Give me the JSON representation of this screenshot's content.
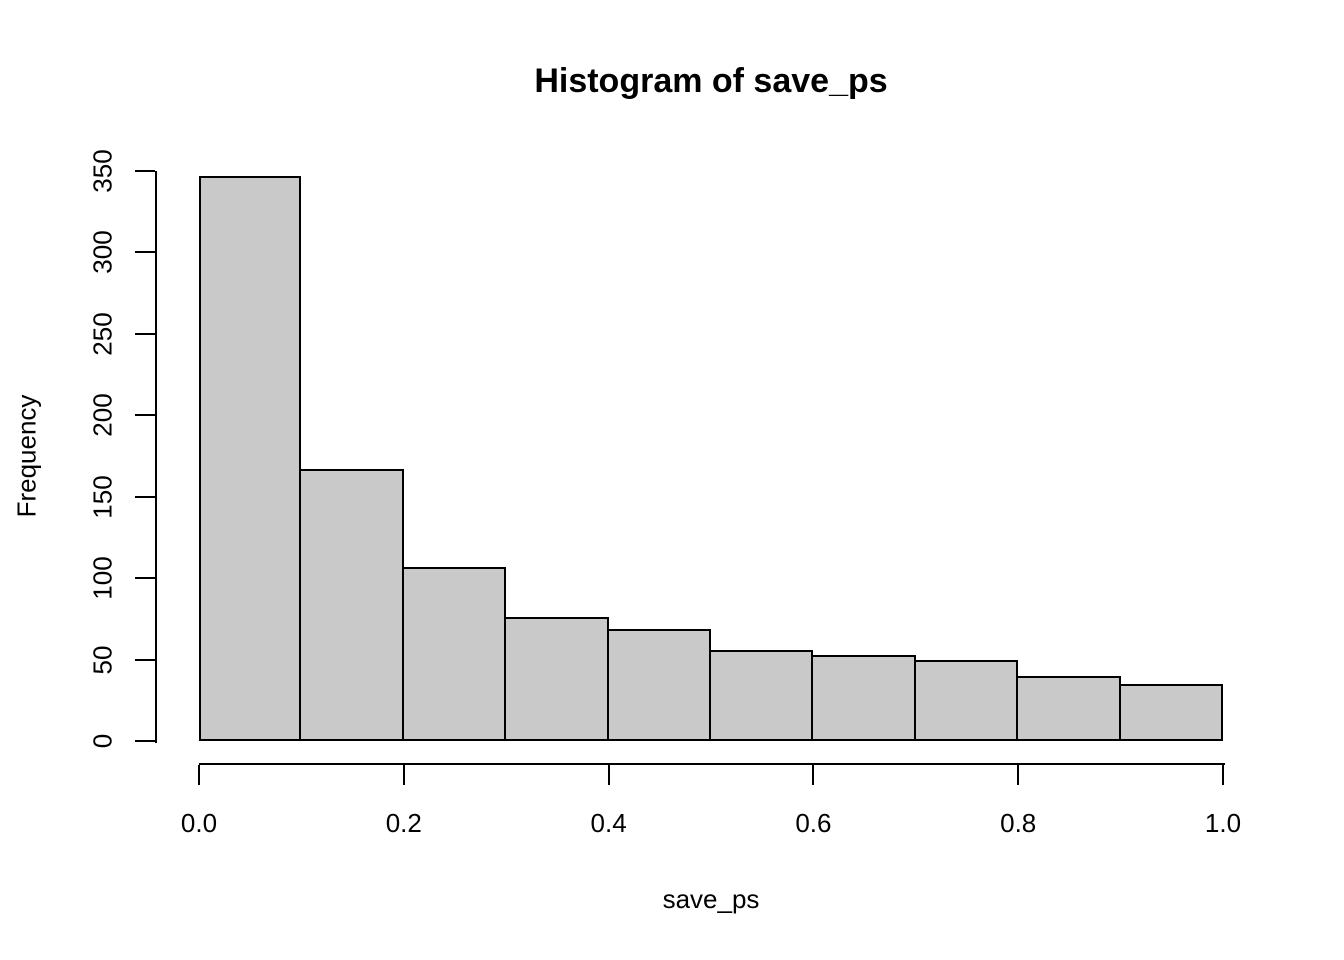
{
  "chart_data": {
    "type": "bar",
    "subtype": "histogram",
    "title": "Histogram of save_ps",
    "xlabel": "save_ps",
    "ylabel": "Frequency",
    "bin_edges": [
      0.0,
      0.1,
      0.2,
      0.3,
      0.4,
      0.5,
      0.6,
      0.7,
      0.8,
      0.9,
      1.0
    ],
    "counts": [
      347,
      167,
      107,
      76,
      69,
      56,
      53,
      50,
      40,
      35
    ],
    "total_count": 1000,
    "x_tick_values": [
      0.0,
      0.2,
      0.4,
      0.6,
      0.8,
      1.0
    ],
    "x_tick_labels": [
      "0.0",
      "0.2",
      "0.4",
      "0.6",
      "0.8",
      "1.0"
    ],
    "y_tick_values": [
      0,
      50,
      100,
      150,
      200,
      250,
      300,
      350
    ],
    "y_tick_labels": [
      "0",
      "50",
      "100",
      "150",
      "200",
      "250",
      "300",
      "350"
    ],
    "xlim": [
      0.0,
      1.0
    ],
    "ylim": [
      0,
      350
    ],
    "grid": false,
    "legend": null,
    "colors": {
      "bar_fill": "#C9C9C9",
      "bar_border": "#000000",
      "axis": "#000000",
      "text": "#000000",
      "background": "#FFFFFF"
    }
  }
}
